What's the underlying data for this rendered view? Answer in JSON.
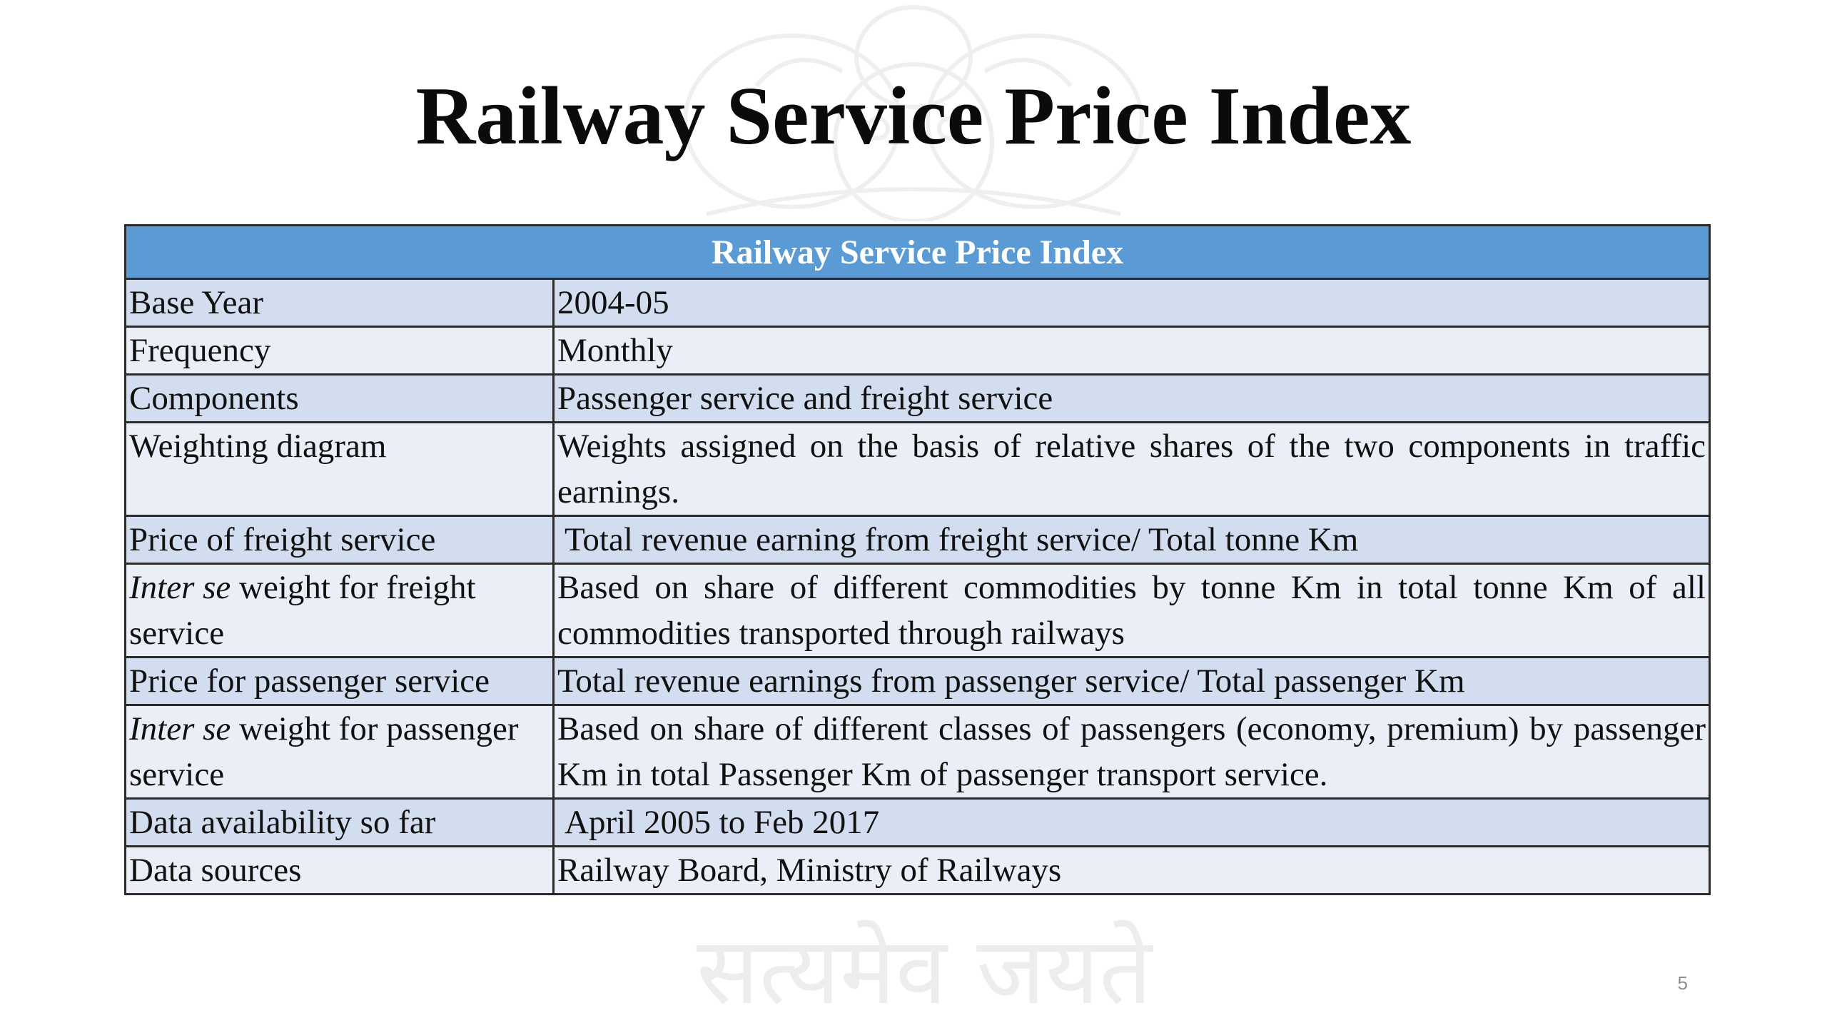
{
  "slide": {
    "title": "Railway Service Price Index",
    "page_number": "5",
    "watermark_motto": "सत्यमेव जयते"
  },
  "table": {
    "header": "Railway Service Price Index",
    "rows": [
      {
        "label": "Base Year",
        "value": "2004-05"
      },
      {
        "label": "Frequency",
        "value": "Monthly"
      },
      {
        "label": "Components",
        "value": "Passenger service and freight service"
      },
      {
        "label": "Weighting diagram",
        "value": "Weights assigned on the basis of relative shares of the two components in traffic earnings."
      },
      {
        "label": "Price of freight service",
        "value": "Total revenue earning from freight service/ Total tonne Km"
      },
      {
        "label_italic": "Inter se",
        "label_rest": " weight for freight service",
        "value": "Based on share of different commodities by tonne Km in total tonne Km of all commodities transported through railways"
      },
      {
        "label": "Price for passenger service",
        "value": "Total revenue earnings from passenger service/ Total passenger Km"
      },
      {
        "label_italic": "Inter se",
        "label_rest": " weight for passenger service",
        "value": "Based on share of different classes of passengers (economy, premium) by passenger Km in total Passenger Km of passenger transport service."
      },
      {
        "label": "Data availability so far",
        "value": "April 2005 to Feb 2017"
      },
      {
        "label": "Data sources",
        "value": "Railway Board, Ministry of Railways"
      }
    ]
  },
  "colors": {
    "header_bg": "#5b9bd5",
    "row_odd_bg": "#d2deef",
    "row_even_bg": "#eaeff7",
    "border": "#2b2b2b"
  }
}
